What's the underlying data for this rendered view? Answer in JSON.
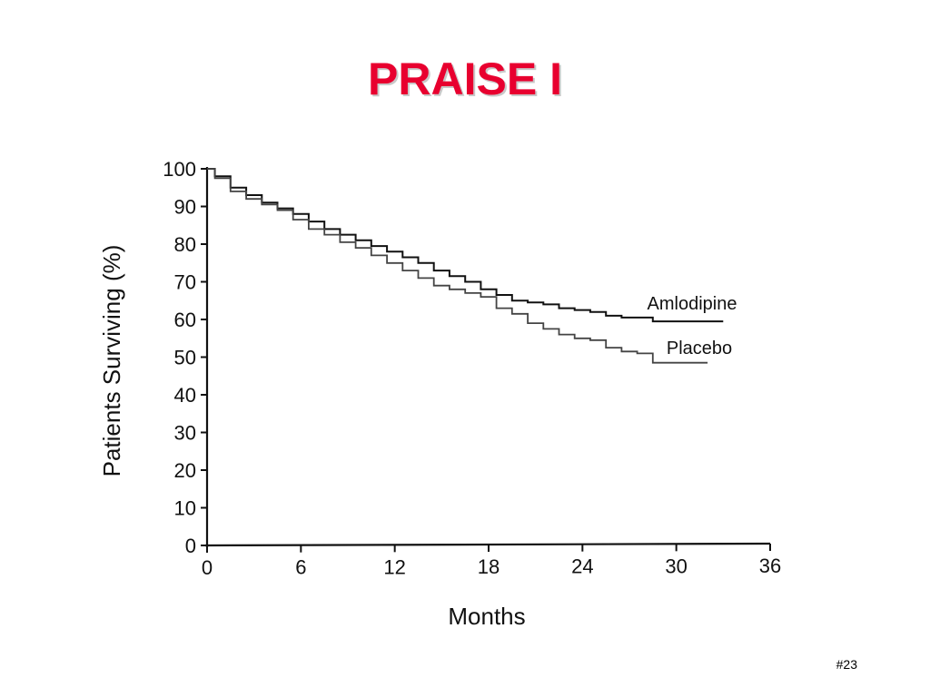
{
  "slide": {
    "title": "PRAISE I",
    "number": "#23"
  },
  "chart_data": {
    "type": "line",
    "xlabel": "Months",
    "ylabel": "Patients Surviving (%)",
    "xlim": [
      0,
      36
    ],
    "ylim": [
      0,
      100
    ],
    "xticks": [
      "0",
      "6",
      "12",
      "18",
      "24",
      "30",
      "36"
    ],
    "yticks": [
      "0",
      "10",
      "20",
      "30",
      "40",
      "50",
      "60",
      "70",
      "80",
      "90",
      "100"
    ],
    "grid": false,
    "series": [
      {
        "name": "Amlodipine",
        "color": "#111111",
        "x": [
          0,
          1,
          2,
          3,
          4,
          5,
          6,
          7,
          8,
          9,
          10,
          11,
          12,
          13,
          14,
          15,
          16,
          17,
          18,
          19,
          20,
          21,
          22,
          23,
          24,
          25,
          26,
          27,
          28,
          29,
          30,
          31,
          32,
          33
        ],
        "y": [
          100,
          98,
          95,
          93,
          91,
          89.5,
          88,
          86,
          84,
          82.5,
          81,
          79.5,
          78,
          76.5,
          75,
          73,
          71.5,
          70,
          68,
          66.5,
          65,
          64.5,
          64,
          63,
          62.5,
          62,
          61,
          60.5,
          60.5,
          59.5,
          59.5,
          59.5,
          59.5,
          59.5
        ]
      },
      {
        "name": "Placebo",
        "color": "#444444",
        "x": [
          0,
          1,
          2,
          3,
          4,
          5,
          6,
          7,
          8,
          9,
          10,
          11,
          12,
          13,
          14,
          15,
          16,
          17,
          18,
          19,
          20,
          21,
          22,
          23,
          24,
          25,
          26,
          27,
          28,
          29,
          30,
          31,
          32
        ],
        "y": [
          100,
          97.5,
          94,
          92,
          90.5,
          89,
          86.5,
          84,
          82.5,
          80.5,
          79,
          77,
          75,
          73,
          71,
          69,
          68,
          67,
          66,
          63,
          61.5,
          59,
          57.5,
          56,
          55,
          54.5,
          52.5,
          51.5,
          51,
          48.5,
          48.5,
          48.5,
          48.5
        ]
      }
    ]
  }
}
